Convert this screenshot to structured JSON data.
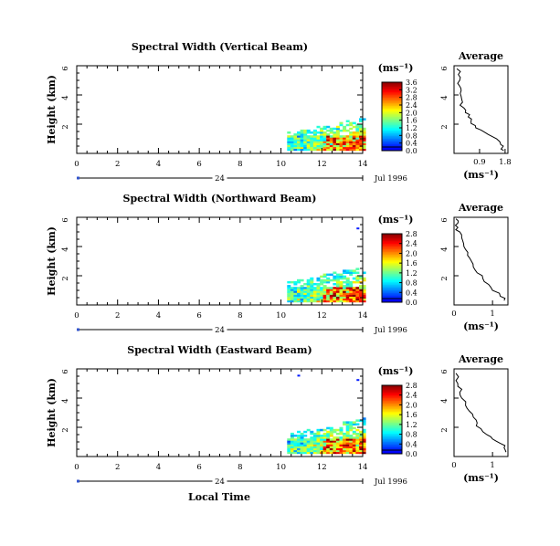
{
  "figure": {
    "xlabel": "Local Time",
    "date_label": "Jul 1996",
    "day_label": "24"
  },
  "chart_data": [
    {
      "type": "heatmap",
      "title": "Spectral Width (Vertical Beam)",
      "ylabel": "Height (km)",
      "xlim": [
        0,
        14
      ],
      "ylim": [
        0,
        6
      ],
      "x_ticks": [
        "0",
        "2",
        "4",
        "6",
        "8",
        "10",
        "12",
        "14"
      ],
      "y_ticks": [
        "2",
        "4",
        "6"
      ],
      "colorbar": {
        "unit": "(ms⁻¹)",
        "ticks": [
          "0.0",
          "0.4",
          "0.8",
          "1.2",
          "1.6",
          "2.0",
          "2.4",
          "2.8",
          "3.2",
          "3.6"
        ],
        "range": [
          0,
          3.6
        ]
      },
      "data_extent": {
        "x": [
          10.3,
          14
        ],
        "y": [
          0.2,
          2.4
        ]
      }
    },
    {
      "type": "line",
      "title": "Average",
      "xlabel": "(ms⁻¹)",
      "xlim": [
        0,
        1.9
      ],
      "ylim": [
        0,
        6
      ],
      "x_ticks": [
        "0.9",
        "1.8"
      ],
      "y_ticks": [
        "2",
        "4",
        "6"
      ],
      "series": [
        {
          "x": [
            1.75,
            1.7,
            1.65,
            1.5,
            1.2,
            0.95,
            0.75,
            0.6,
            0.5,
            0.4,
            0.35,
            0.3,
            0.25,
            0.25,
            0.2,
            0.2,
            0.15,
            0.1
          ],
          "y": [
            0.2,
            0.4,
            0.6,
            1.0,
            1.3,
            1.6,
            1.9,
            2.2,
            2.5,
            2.8,
            3.1,
            3.5,
            3.9,
            4.3,
            4.6,
            5.0,
            5.4,
            5.8
          ]
        }
      ]
    },
    {
      "type": "heatmap",
      "title": "Spectral Width (Northward Beam)",
      "ylabel": "Height (km)",
      "xlim": [
        0,
        14
      ],
      "ylim": [
        0,
        6
      ],
      "x_ticks": [
        "0",
        "2",
        "4",
        "6",
        "8",
        "10",
        "12",
        "14"
      ],
      "y_ticks": [
        "2",
        "4",
        "6"
      ],
      "colorbar": {
        "unit": "(ms⁻¹)",
        "ticks": [
          "0.0",
          "0.4",
          "0.8",
          "1.2",
          "1.6",
          "2.0",
          "2.4",
          "2.8"
        ],
        "range": [
          0,
          2.8
        ]
      },
      "data_extent": {
        "x": [
          10.3,
          14
        ],
        "y": [
          0.2,
          2.6
        ]
      }
    },
    {
      "type": "line",
      "title": "Average",
      "xlabel": "(ms⁻¹)",
      "xlim": [
        0,
        1.4
      ],
      "ylim": [
        0,
        6
      ],
      "x_ticks": [
        "0",
        "1"
      ],
      "y_ticks": [
        "2",
        "4",
        "6"
      ],
      "series": [
        {
          "x": [
            1.3,
            1.2,
            1.0,
            0.9,
            0.75,
            0.6,
            0.5,
            0.45,
            0.35,
            0.3,
            0.25,
            0.2,
            0.15,
            0.1,
            0.1,
            0.05
          ],
          "y": [
            0.3,
            0.6,
            1.0,
            1.4,
            1.8,
            2.2,
            2.6,
            3.0,
            3.4,
            3.8,
            4.2,
            4.6,
            5.0,
            5.3,
            5.6,
            5.9
          ]
        }
      ]
    },
    {
      "type": "heatmap",
      "title": "Spectral Width (Eastward Beam)",
      "ylabel": "Height (km)",
      "xlim": [
        0,
        14
      ],
      "ylim": [
        0,
        6
      ],
      "x_ticks": [
        "0",
        "2",
        "4",
        "6",
        "8",
        "10",
        "12",
        "14"
      ],
      "y_ticks": [
        "2",
        "4",
        "6"
      ],
      "colorbar": {
        "unit": "(ms⁻¹)",
        "ticks": [
          "0.0",
          "0.4",
          "0.8",
          "1.2",
          "1.6",
          "2.0",
          "2.4",
          "2.8"
        ],
        "range": [
          0,
          2.8
        ]
      },
      "data_extent": {
        "x": [
          10.3,
          14
        ],
        "y": [
          0.2,
          2.6
        ]
      }
    },
    {
      "type": "line",
      "title": "Average",
      "xlabel": "(ms⁻¹)",
      "xlim": [
        0,
        1.4
      ],
      "ylim": [
        0,
        6
      ],
      "x_ticks": [
        "0",
        "1"
      ],
      "y_ticks": [
        "2",
        "4",
        "6"
      ],
      "series": [
        {
          "x": [
            1.35,
            1.3,
            1.2,
            1.0,
            0.85,
            0.7,
            0.6,
            0.5,
            0.4,
            0.3,
            0.2,
            0.15,
            0.1,
            0.05,
            0.05
          ],
          "y": [
            0.3,
            0.6,
            0.9,
            1.2,
            1.5,
            1.9,
            2.3,
            2.7,
            3.1,
            3.5,
            4.0,
            4.4,
            4.8,
            5.2,
            5.7
          ]
        }
      ]
    }
  ]
}
